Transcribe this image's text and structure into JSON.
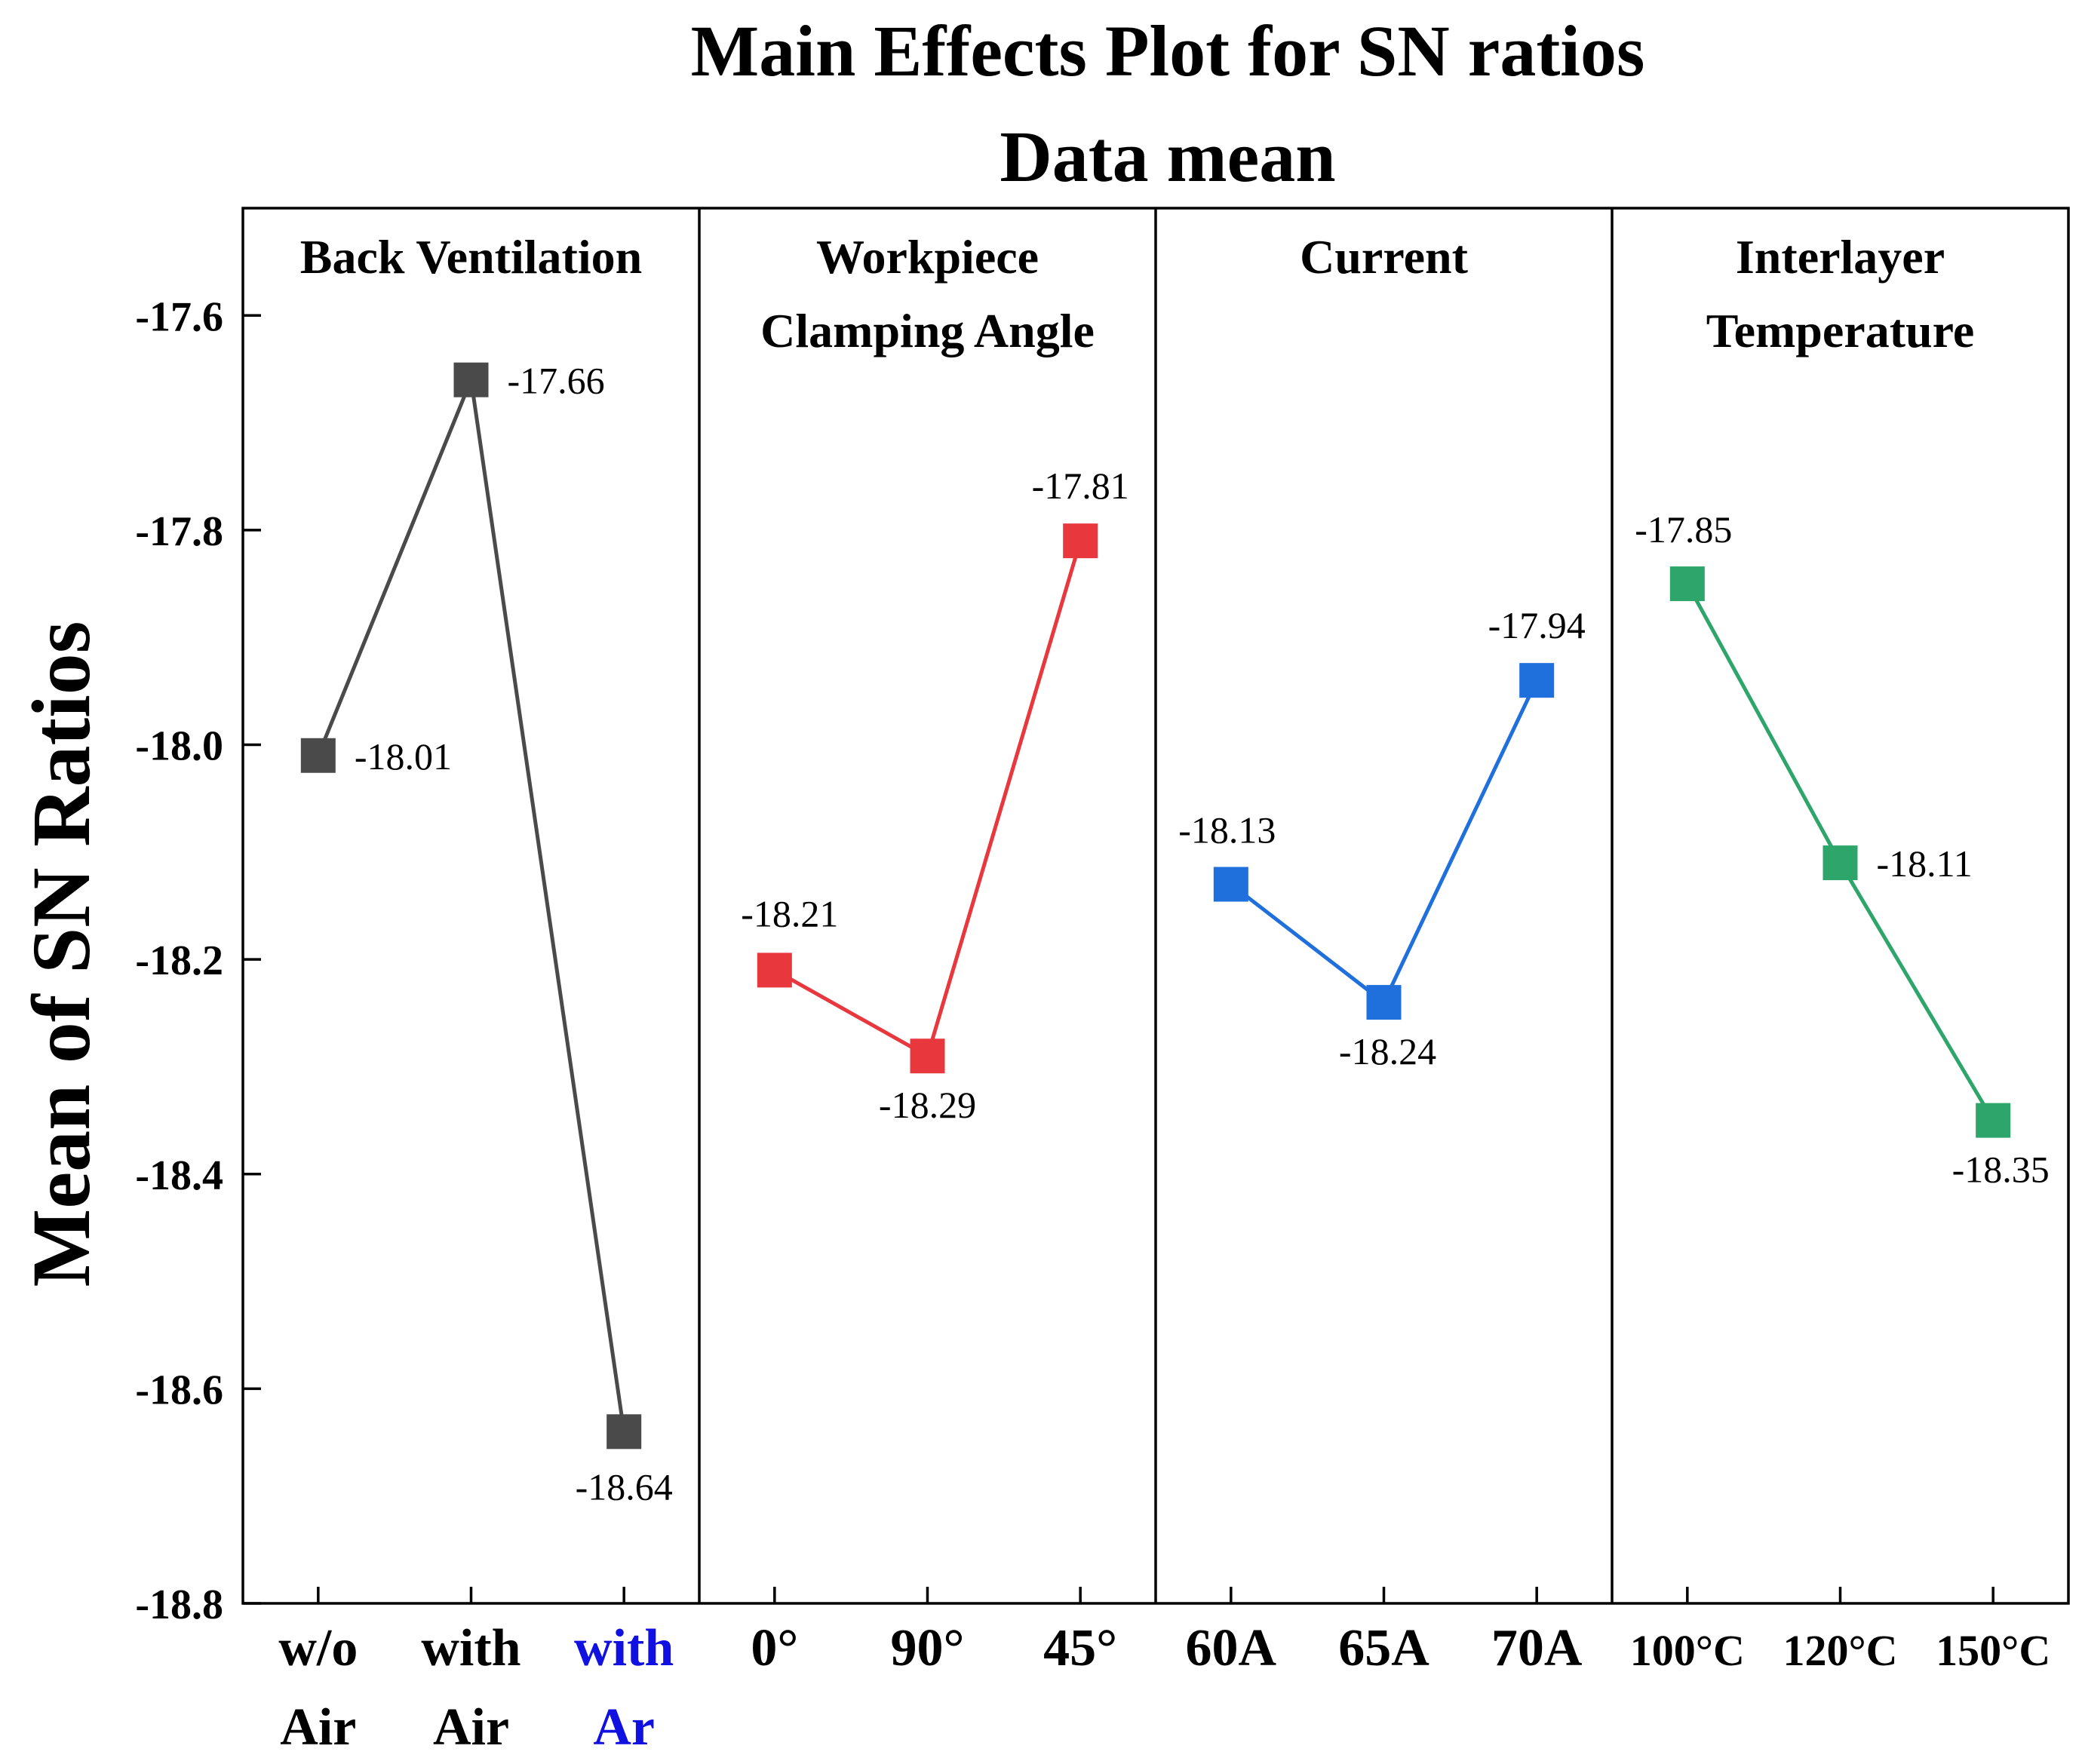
{
  "chart_data": {
    "type": "line",
    "title": "Main Effects Plot for SN ratios",
    "subtitle": "Data mean",
    "ylabel": "Mean of SN Ratios",
    "ylim": [
      -18.8,
      -17.5
    ],
    "yticks": [
      "-17.6",
      "-17.8",
      "-18.0",
      "-18.2",
      "-18.4",
      "-18.6",
      "-18.8"
    ],
    "ytick_values": [
      -17.6,
      -17.8,
      -18.0,
      -18.2,
      -18.4,
      -18.6,
      -18.8
    ],
    "grid": false,
    "panels": [
      {
        "title_lines": [
          "Back Ventilation"
        ],
        "color": "#4a4a4a",
        "categories": [
          {
            "lines": [
              "w/o",
              "Air"
            ],
            "color": "#000000"
          },
          {
            "lines": [
              "with",
              "Air"
            ],
            "color": "#000000"
          },
          {
            "lines": [
              "with",
              "Ar"
            ],
            "color": "#1010e0"
          }
        ],
        "values": [
          -18.01,
          -17.66,
          -18.64
        ],
        "labels": [
          "-18.01",
          "-17.66",
          "-18.64"
        ]
      },
      {
        "title_lines": [
          "Workpiece",
          "Clamping Angle"
        ],
        "color": "#e8383d",
        "categories": [
          {
            "lines": [
              "0°"
            ],
            "color": "#000000"
          },
          {
            "lines": [
              "90°"
            ],
            "color": "#000000"
          },
          {
            "lines": [
              "45°"
            ],
            "color": "#000000"
          }
        ],
        "values": [
          -18.21,
          -18.29,
          -17.81
        ],
        "labels": [
          "-18.21",
          "-18.29",
          "-17.81"
        ]
      },
      {
        "title_lines": [
          "Current"
        ],
        "color": "#1f6fdd",
        "categories": [
          {
            "lines": [
              "60A"
            ],
            "color": "#000000"
          },
          {
            "lines": [
              "65A"
            ],
            "color": "#000000"
          },
          {
            "lines": [
              "70A"
            ],
            "color": "#000000"
          }
        ],
        "values": [
          -18.13,
          -18.24,
          -17.94
        ],
        "labels": [
          "-18.13",
          "-18.24",
          "-17.94"
        ]
      },
      {
        "title_lines": [
          "Interlayer",
          "Temperature"
        ],
        "color": "#2ea56a",
        "categories": [
          {
            "lines": [
              "100°C"
            ],
            "color": "#000000"
          },
          {
            "lines": [
              "120°C"
            ],
            "color": "#000000"
          },
          {
            "lines": [
              "150°C"
            ],
            "color": "#000000"
          }
        ],
        "values": [
          -17.85,
          -18.11,
          -18.35
        ],
        "labels": [
          "-17.85",
          "-18.11",
          "-18.35"
        ]
      }
    ]
  }
}
